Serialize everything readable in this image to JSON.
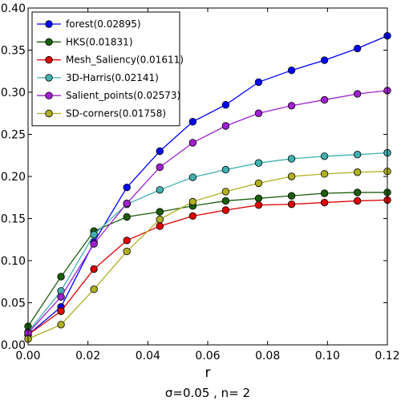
{
  "chart_data": {
    "type": "line",
    "xlabel": "r",
    "ylabel": "",
    "subtitle": "σ=0.05  , n= 2",
    "xlim": [
      0.0,
      0.12
    ],
    "ylim": [
      0.0,
      0.4
    ],
    "x_ticks": [
      "0.00",
      "0.02",
      "0.04",
      "0.06",
      "0.08",
      "0.10",
      "0.12"
    ],
    "y_ticks": [
      "0.00",
      "0.05",
      "0.10",
      "0.15",
      "0.20",
      "0.25",
      "0.30",
      "0.35",
      "0.40"
    ],
    "legend_position": "top-left",
    "x": [
      0.0,
      0.011,
      0.022,
      0.033,
      0.044,
      0.055,
      0.066,
      0.077,
      0.088,
      0.099,
      0.11,
      0.12
    ],
    "series": [
      {
        "name": "forest(0.02895)",
        "color": "#0000ff",
        "values": [
          0.012,
          0.045,
          0.122,
          0.187,
          0.23,
          0.265,
          0.285,
          0.312,
          0.326,
          0.338,
          0.352,
          0.367
        ]
      },
      {
        "name": "HKS(0.01831)",
        "color": "#1a5e0a",
        "values": [
          0.022,
          0.081,
          0.135,
          0.152,
          0.158,
          0.165,
          0.171,
          0.174,
          0.177,
          0.18,
          0.181,
          0.181
        ]
      },
      {
        "name": "Mesh_Saliency(0.01611)",
        "color": "#e00000",
        "values": [
          0.012,
          0.04,
          0.09,
          0.124,
          0.141,
          0.153,
          0.16,
          0.166,
          0.167,
          0.169,
          0.171,
          0.172
        ]
      },
      {
        "name": "3D-Harris(0.02141)",
        "color": "#40b0b0",
        "values": [
          0.015,
          0.064,
          0.131,
          0.167,
          0.184,
          0.199,
          0.208,
          0.216,
          0.221,
          0.224,
          0.226,
          0.228
        ]
      },
      {
        "name": "Salient_points(0.02573)",
        "color": "#a020d0",
        "values": [
          0.014,
          0.057,
          0.12,
          0.168,
          0.211,
          0.24,
          0.26,
          0.275,
          0.284,
          0.291,
          0.298,
          0.302
        ]
      },
      {
        "name": "SD-corners(0.01758)",
        "color": "#b0b020",
        "values": [
          0.007,
          0.024,
          0.066,
          0.111,
          0.149,
          0.17,
          0.182,
          0.192,
          0.2,
          0.203,
          0.205,
          0.206
        ]
      }
    ]
  }
}
